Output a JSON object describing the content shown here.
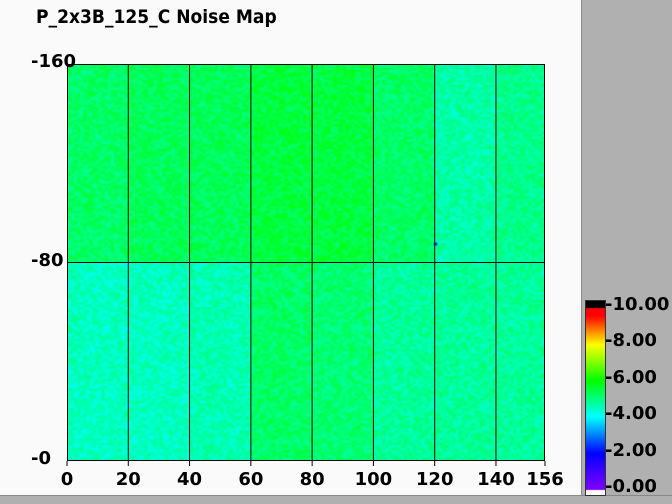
{
  "chart_data": {
    "type": "heatmap",
    "title": "P_2x3B_125_C Noise Map",
    "xlabel": "",
    "ylabel": "",
    "xlim": [
      0,
      156
    ],
    "ylim": [
      0,
      160
    ],
    "x_ticks": [
      "0",
      "20",
      "40",
      "60",
      "80",
      "100",
      "120",
      "140",
      "156"
    ],
    "y_ticks": [
      "0",
      "80",
      "160"
    ],
    "x_tick_values": [
      0,
      20,
      40,
      60,
      80,
      100,
      120,
      140,
      156
    ],
    "y_tick_values": [
      0,
      80,
      160
    ],
    "grid": true,
    "colorbar": {
      "range": [
        0,
        10
      ],
      "tick_labels": [
        "0.00",
        "2.00",
        "4.00",
        "6.00",
        "8.00",
        "10.00"
      ],
      "tick_values": [
        0,
        2,
        4,
        6,
        8,
        10
      ],
      "colors": [
        "#8000ff",
        "#0000ff",
        "#00ffff",
        "#00ff00",
        "#ffff00",
        "#ff0000",
        "#000000"
      ],
      "legend_placement": "right"
    },
    "approx_block_means": {
      "x_blocks": [
        "0-20",
        "20-40",
        "40-60",
        "60-80",
        "80-100",
        "100-120",
        "120-140",
        "140-156"
      ],
      "y_80_160": [
        5.2,
        5.3,
        5.3,
        5.5,
        5.5,
        5.2,
        4.7,
        4.9
      ],
      "y_0_80": [
        4.5,
        4.5,
        4.6,
        5.2,
        5.1,
        4.8,
        4.8,
        4.8
      ]
    },
    "outliers": [
      {
        "x": 120,
        "y": 87,
        "value": 1.8
      }
    ]
  }
}
